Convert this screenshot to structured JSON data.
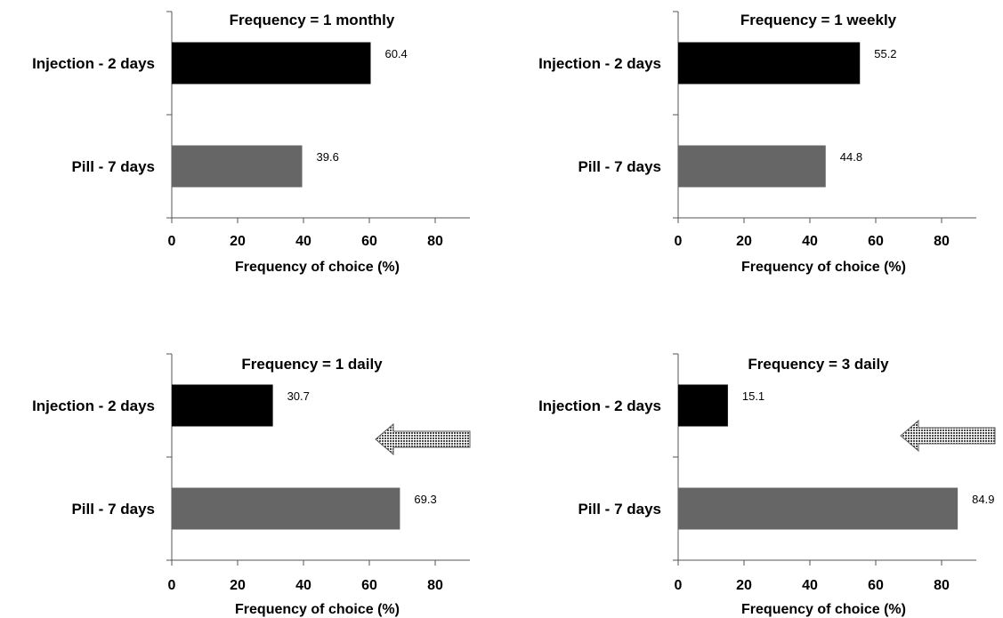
{
  "chart_data": [
    {
      "type": "bar",
      "orientation": "horizontal",
      "title": "Frequency = 1 monthly",
      "categories": [
        "Injection - 2 days",
        "Pill - 7 days"
      ],
      "values": [
        60.4,
        39.6
      ],
      "data_labels": [
        "60.4",
        "39.6"
      ],
      "xlabel": "Frequency of choice (%)",
      "xlim": [
        0,
        90
      ],
      "xticks": [
        "0",
        "20",
        "40",
        "60",
        "80"
      ],
      "arrow": false,
      "grid": false
    },
    {
      "type": "bar",
      "orientation": "horizontal",
      "title": "Frequency = 1 weekly",
      "categories": [
        "Injection - 2 days",
        "Pill - 7 days"
      ],
      "values": [
        55.2,
        44.8
      ],
      "data_labels": [
        "55.2",
        "44.8"
      ],
      "xlabel": "Frequency of choice (%)",
      "xlim": [
        0,
        90
      ],
      "xticks": [
        "0",
        "20",
        "40",
        "60",
        "80"
      ],
      "arrow": false,
      "grid": false
    },
    {
      "type": "bar",
      "orientation": "horizontal",
      "title": "Frequency = 1 daily",
      "categories": [
        "Injection - 2 days",
        "Pill - 7 days"
      ],
      "values": [
        30.7,
        69.3
      ],
      "data_labels": [
        "30.7",
        "69.3"
      ],
      "xlabel": "Frequency of choice (%)",
      "xlim": [
        0,
        90
      ],
      "xticks": [
        "0",
        "20",
        "40",
        "60",
        "80"
      ],
      "arrow": true,
      "grid": false
    },
    {
      "type": "bar",
      "orientation": "horizontal",
      "title": "Frequency = 3 daily",
      "categories": [
        "Injection - 2 days",
        "Pill - 7 days"
      ],
      "values": [
        15.1,
        84.9
      ],
      "data_labels": [
        "15.1",
        "84.9"
      ],
      "xlabel": "Frequency of choice (%)",
      "xlim": [
        0,
        90
      ],
      "xticks": [
        "0",
        "20",
        "40",
        "60",
        "80"
      ],
      "arrow": true,
      "grid": false
    }
  ],
  "colors": {
    "injection_bar": "#000000",
    "pill_bar": "#666666",
    "axis": "#555555",
    "arrow": "#555555"
  }
}
